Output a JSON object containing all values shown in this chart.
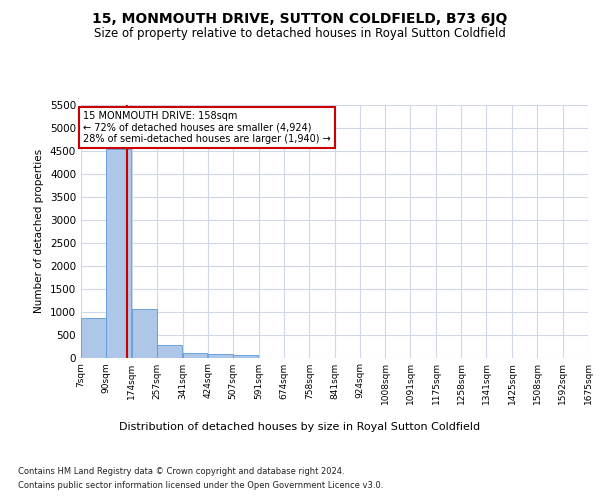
{
  "title": "15, MONMOUTH DRIVE, SUTTON COLDFIELD, B73 6JQ",
  "subtitle": "Size of property relative to detached houses in Royal Sutton Coldfield",
  "xlabel": "Distribution of detached houses by size in Royal Sutton Coldfield",
  "ylabel": "Number of detached properties",
  "footer_line1": "Contains HM Land Registry data © Crown copyright and database right 2024.",
  "footer_line2": "Contains public sector information licensed under the Open Government Licence v3.0.",
  "annotation_title": "15 MONMOUTH DRIVE: 158sqm",
  "annotation_line1": "← 72% of detached houses are smaller (4,924)",
  "annotation_line2": "28% of semi-detached houses are larger (1,940) →",
  "property_size_sqm": 158,
  "bin_edges": [
    7,
    90,
    174,
    257,
    341,
    424,
    507,
    591,
    674,
    758,
    841,
    924,
    1008,
    1091,
    1175,
    1258,
    1341,
    1425,
    1508,
    1592,
    1675
  ],
  "bin_counts": [
    870,
    4550,
    1060,
    270,
    95,
    75,
    50,
    0,
    0,
    0,
    0,
    0,
    0,
    0,
    0,
    0,
    0,
    0,
    0,
    0
  ],
  "bar_color": "#aec6e8",
  "bar_edge_color": "#5b9bd5",
  "red_line_color": "#cc0000",
  "grid_color": "#d0d8e8",
  "background_color": "#ffffff",
  "annotation_box_color": "#ffffff",
  "annotation_box_edge": "#cc0000",
  "ylim": [
    0,
    5500
  ],
  "yticks": [
    0,
    500,
    1000,
    1500,
    2000,
    2500,
    3000,
    3500,
    4000,
    4500,
    5000,
    5500
  ]
}
